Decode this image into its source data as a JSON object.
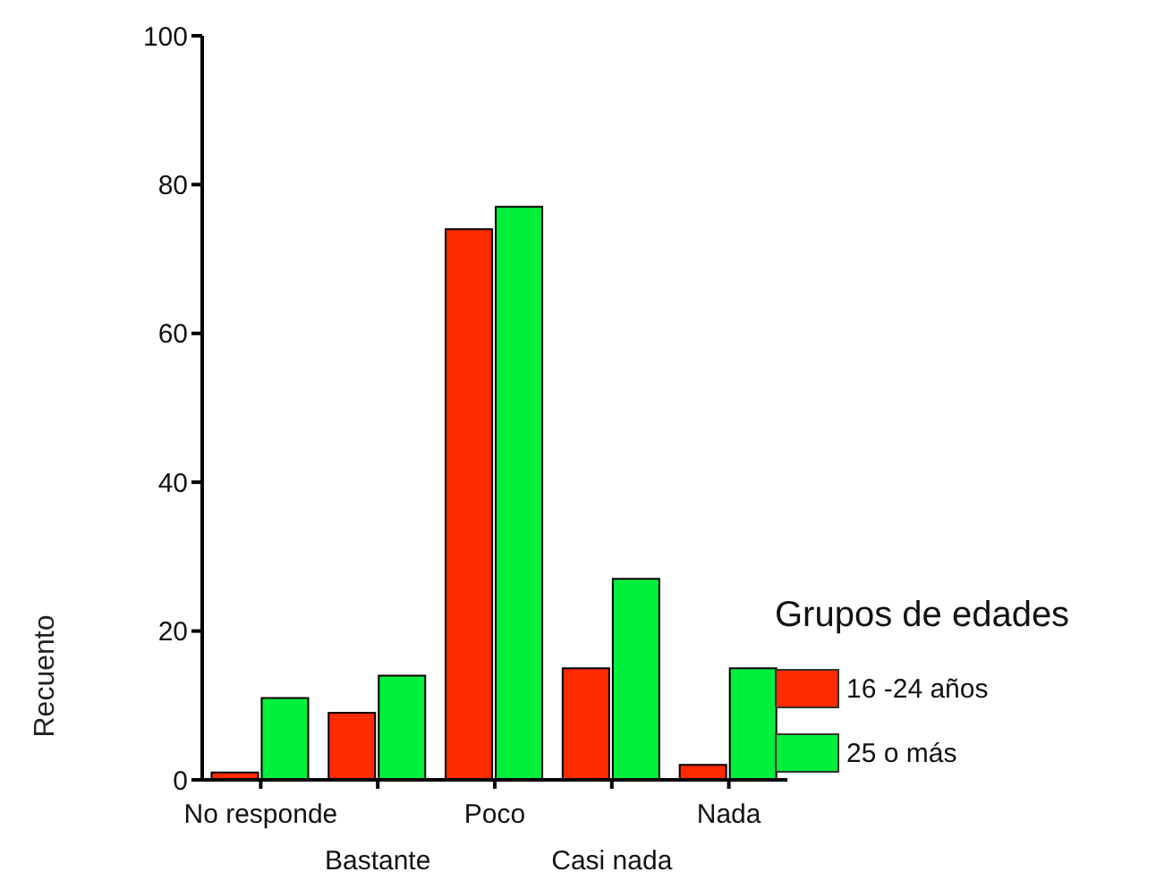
{
  "chart_data": {
    "type": "bar",
    "ylabel": "Recuento",
    "legend_title": "Grupos de edades",
    "categories": [
      "No responde",
      "Bastante",
      "Poco",
      "Casi nada",
      "Nada"
    ],
    "series": [
      {
        "name": "16 -24 años",
        "color": "#ff2a00",
        "values": [
          1,
          9,
          74,
          15,
          2
        ]
      },
      {
        "name": "25 o más",
        "color": "#00f03c",
        "values": [
          11,
          14,
          77,
          27,
          15
        ]
      }
    ],
    "ylim": [
      0,
      100
    ],
    "yticks": [
      0,
      20,
      40,
      60,
      80,
      100
    ],
    "grid": false,
    "legend": "right"
  }
}
